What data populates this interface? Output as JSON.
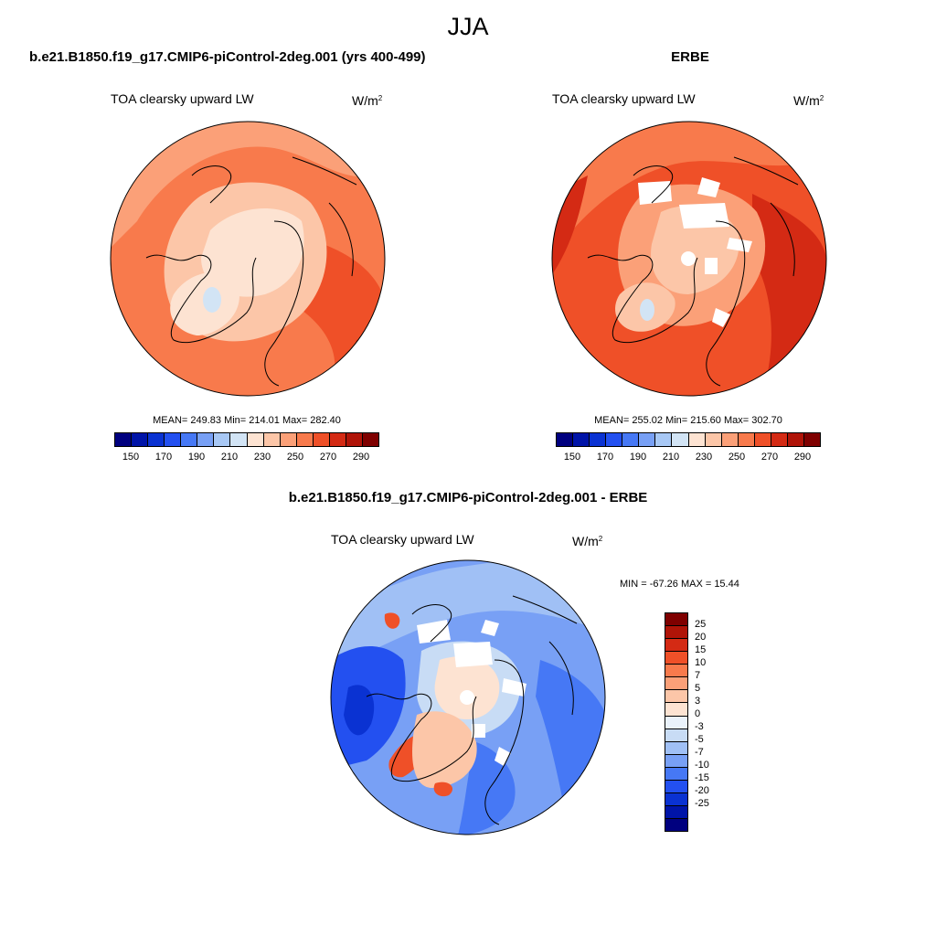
{
  "suptitle": "JJA",
  "panels": [
    {
      "id": "model",
      "header": "b.e21.B1850.f19_g17.CMIP6-piControl-2deg.001 (yrs 400-499)",
      "variable": "TOA clearsky upward LW",
      "units_base": "W/m",
      "units_exp": "2",
      "stats": "MEAN= 249.83  Min= 214.01  Max= 282.40",
      "colorbar_ticks": [
        "150",
        "170",
        "190",
        "210",
        "230",
        "250",
        "270",
        "290"
      ]
    },
    {
      "id": "obs",
      "header": "ERBE",
      "variable": "TOA clearsky upward LW",
      "units_base": "W/m",
      "units_exp": "2",
      "stats": "MEAN= 255.02  Min= 215.60  Max= 302.70",
      "colorbar_ticks": [
        "150",
        "170",
        "190",
        "210",
        "230",
        "250",
        "270",
        "290"
      ]
    },
    {
      "id": "diff",
      "header": "b.e21.B1850.f19_g17.CMIP6-piControl-2deg.001 - ERBE",
      "variable": "TOA clearsky upward LW",
      "units_base": "W/m",
      "units_exp": "2",
      "stats": "MIN = -67.26 MAX =  15.44",
      "colorbar_ticks": [
        "25",
        "20",
        "15",
        "10",
        "7",
        "5",
        "3",
        "0",
        "-3",
        "-5",
        "-7",
        "-10",
        "-15",
        "-20",
        "-25"
      ]
    }
  ],
  "colors": {
    "abs_scale": [
      "#00007f",
      "#0014a8",
      "#0a32d2",
      "#2350f0",
      "#4678f5",
      "#78a0f5",
      "#a8c8f5",
      "#d2e4f5",
      "#fde3d2",
      "#fcc6a8",
      "#fba078",
      "#f87a4c",
      "#ef5028",
      "#d42a14",
      "#b01408",
      "#7f0000"
    ],
    "diff_scale": [
      "#7f0000",
      "#b01408",
      "#d42a14",
      "#ef5028",
      "#f87a4c",
      "#fba078",
      "#fcc6a8",
      "#fde3d2",
      "#eaf2fb",
      "#c8dcf5",
      "#a0c0f5",
      "#78a0f5",
      "#4678f5",
      "#2350f0",
      "#0a32d2",
      "#0014a8",
      "#00007f"
    ]
  }
}
